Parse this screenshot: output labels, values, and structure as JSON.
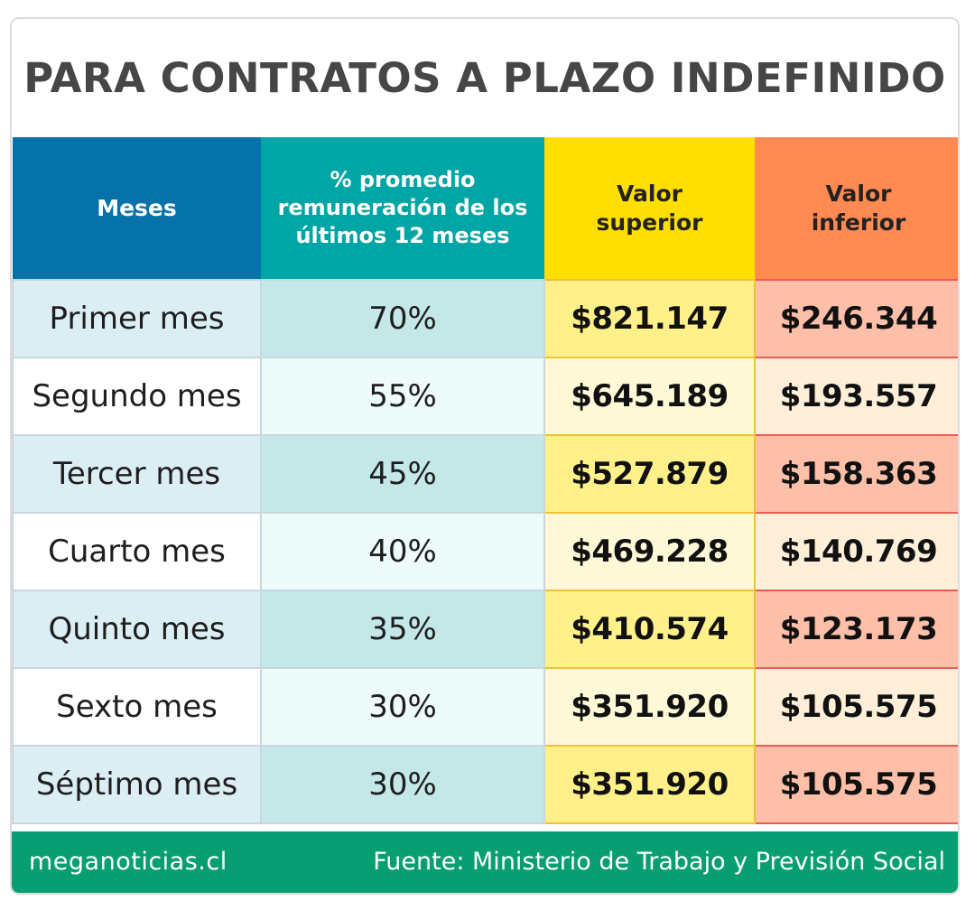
{
  "title": "PARA CONTRATOS A PLAZO INDEFINIDO",
  "table": {
    "headers": {
      "months": "Meses",
      "percent": "% promedio remuneración de los últimos 12 meses",
      "upper": "Valor superior",
      "lower": "Valor inferior"
    },
    "rows": [
      {
        "month": "Primer mes",
        "percent": "70%",
        "upper": "$821.147",
        "lower": "$246.344"
      },
      {
        "month": "Segundo mes",
        "percent": "55%",
        "upper": "$645.189",
        "lower": "$193.557"
      },
      {
        "month": "Tercer mes",
        "percent": "45%",
        "upper": "$527.879",
        "lower": "$158.363"
      },
      {
        "month": "Cuarto mes",
        "percent": "40%",
        "upper": "$469.228",
        "lower": "$140.769"
      },
      {
        "month": "Quinto mes",
        "percent": "35%",
        "upper": "$410.574",
        "lower": "$123.173"
      },
      {
        "month": "Sexto mes",
        "percent": "30%",
        "upper": "$351.920",
        "lower": "$105.575"
      },
      {
        "month": "Séptimo mes",
        "percent": "30%",
        "upper": "$351.920",
        "lower": "$105.575"
      }
    ]
  },
  "footer": {
    "site": "meganoticias.cl",
    "source": "Fuente: Ministerio de Trabajo y Previsión Social"
  },
  "colors": {
    "header_months": "#0573aa",
    "header_percent": "#00a5a5",
    "header_upper": "#ffdf00",
    "header_lower": "#ff8a52",
    "footer": "#079f71",
    "title_text": "#464646"
  }
}
